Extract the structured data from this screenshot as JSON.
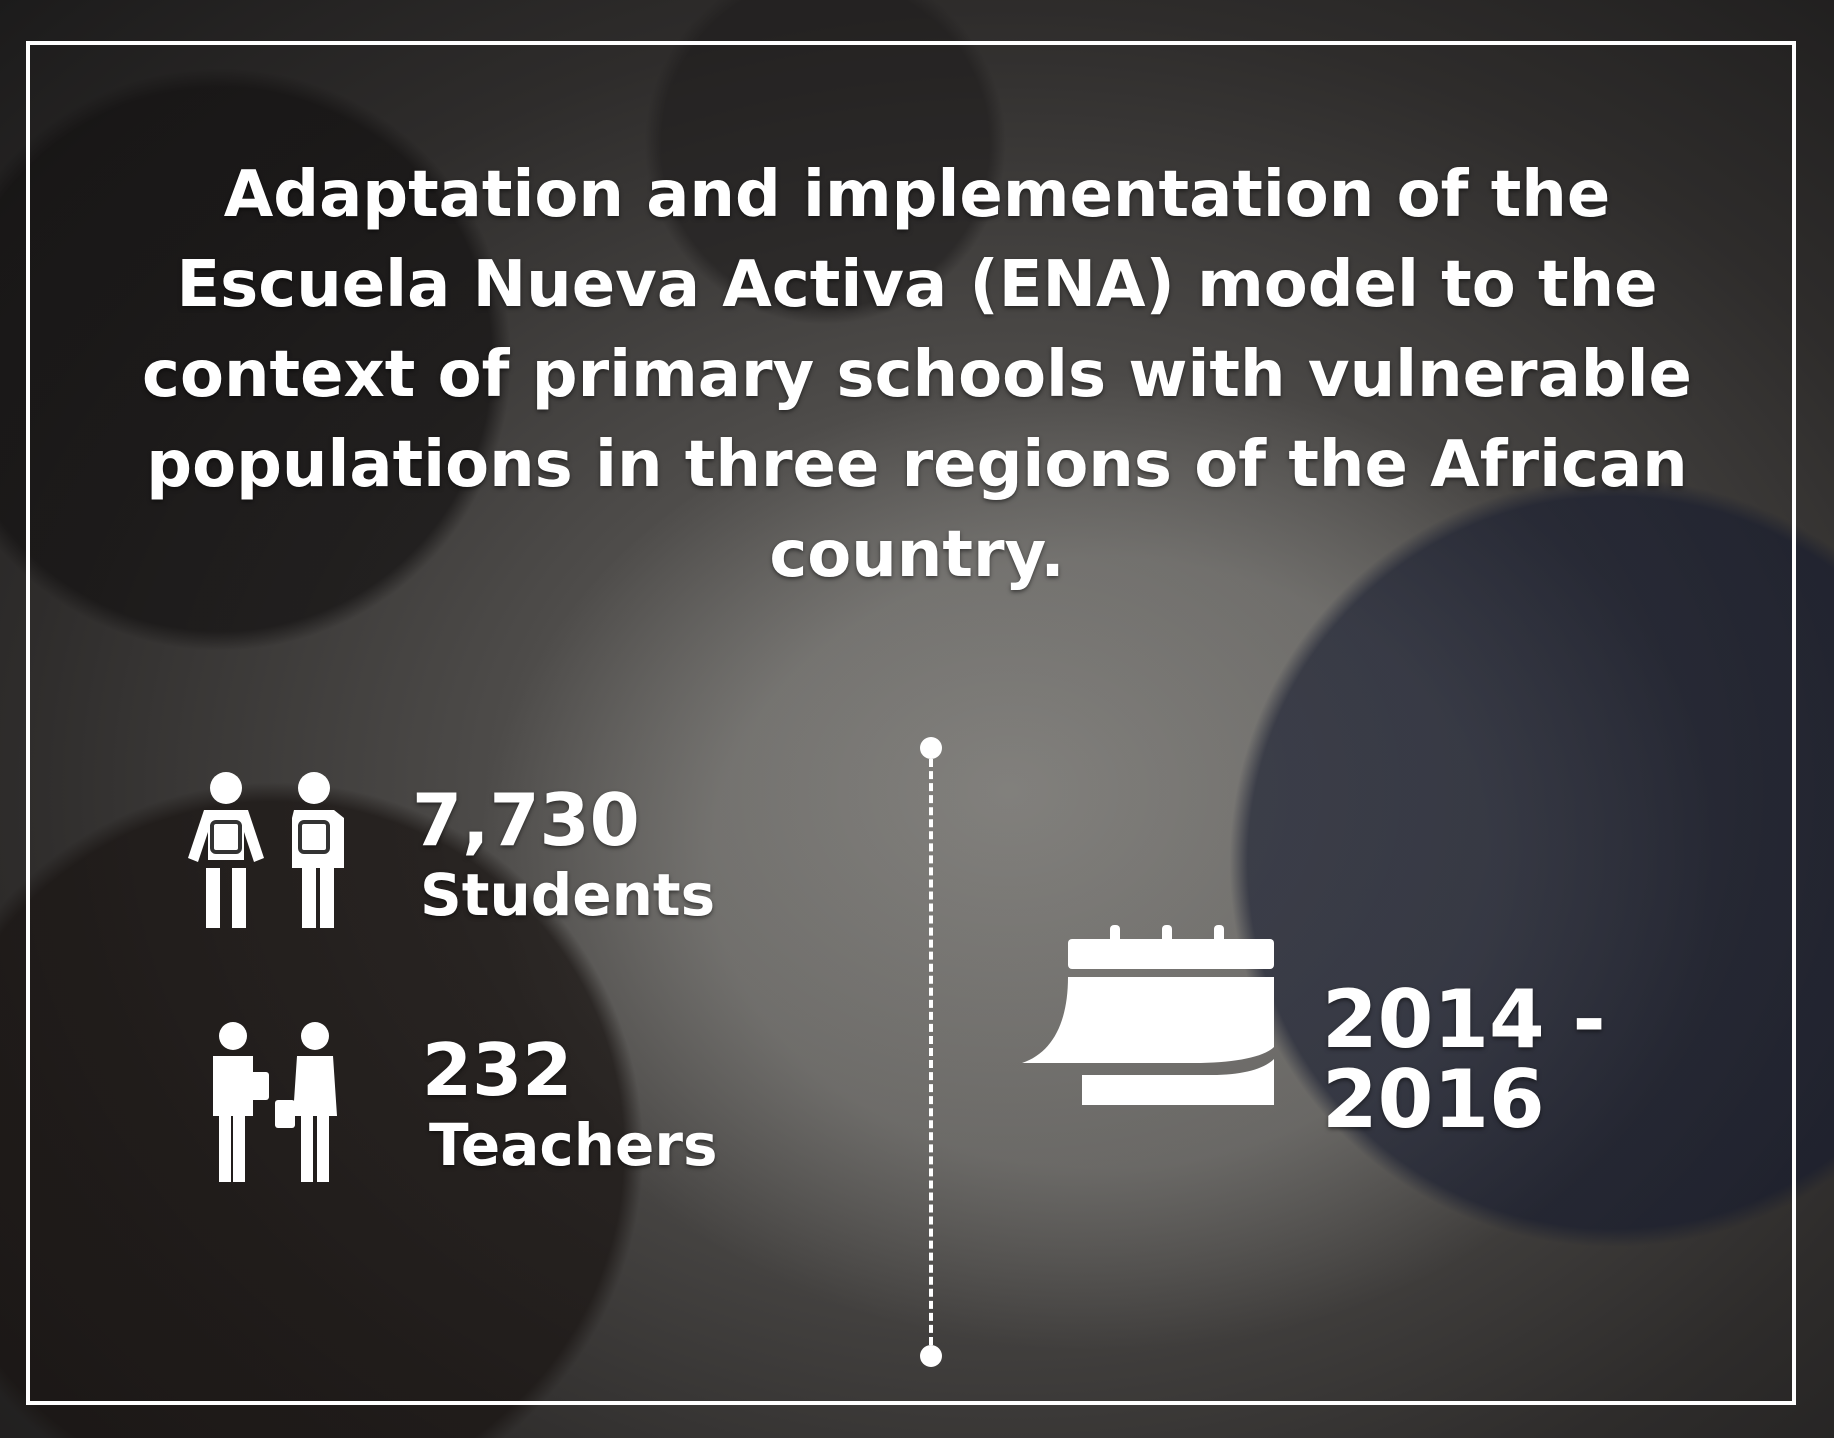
{
  "title": "Adaptation and implementation of the Escuela Nueva Activa (ENA) model to the context of primary schools with vulnerable populations in three regions of the African country.",
  "stats": {
    "students": {
      "value": "7,730",
      "label": "Students",
      "icon": "students-backpack-icon"
    },
    "teachers": {
      "value": "232",
      "label": "Teachers",
      "icon": "teachers-icon"
    }
  },
  "period": {
    "value": "2014 - 2016",
    "icon": "calendar-icon"
  },
  "colors": {
    "text": "#ffffff",
    "frame": "#ffffff"
  }
}
